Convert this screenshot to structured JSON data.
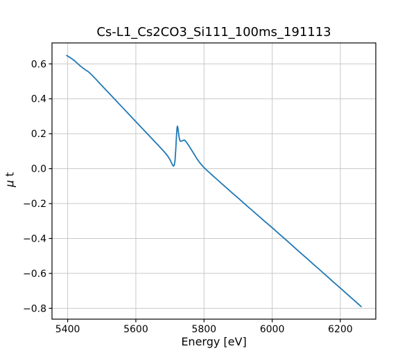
{
  "window": {
    "background": "#ffffff"
  },
  "chart_data": {
    "type": "line",
    "title": "Cs-L1_Cs2CO3_Si111_100ms_191113",
    "xlabel": "Energy [eV]",
    "ylabel": "μ t",
    "ylabel_math": "μ",
    "ylabel_rest": " t",
    "xlim": [
      5354,
      6304
    ],
    "ylim": [
      -0.862,
      0.72
    ],
    "xticks": [
      5400,
      5600,
      5800,
      6000,
      6200
    ],
    "xtick_labels": [
      "5400",
      "5600",
      "5800",
      "6000",
      "6200"
    ],
    "yticks": [
      0.6,
      0.4,
      0.2,
      0.0,
      -0.2,
      -0.4,
      -0.6,
      -0.8
    ],
    "ytick_labels": [
      "0.6",
      "0.4",
      "0.2",
      "0.0",
      "−0.2",
      "−0.4",
      "−0.6",
      "−0.8"
    ],
    "grid": true,
    "legend": "none",
    "line_color": "#1f77b4",
    "grid_color": "#c8c8c8",
    "spine_color": "#000000",
    "series": [
      {
        "name": "mu_t_spectrum",
        "x": [
          5397,
          5404,
          5412,
          5420,
          5428,
          5436,
          5444,
          5452,
          5460,
          5470,
          5480,
          5490,
          5500,
          5515,
          5530,
          5545,
          5560,
          5575,
          5590,
          5605,
          5620,
          5635,
          5650,
          5665,
          5678,
          5688,
          5695,
          5700,
          5704,
          5707,
          5709,
          5711,
          5713,
          5715,
          5717,
          5719,
          5721,
          5722,
          5723,
          5725,
          5727,
          5730,
          5734,
          5738,
          5742,
          5746,
          5750,
          5756,
          5763,
          5771,
          5780,
          5790,
          5800,
          5812,
          5825,
          5840,
          5855,
          5870,
          5885,
          5900,
          5920,
          5940,
          5960,
          5980,
          6000,
          6020,
          6040,
          6060,
          6080,
          6100,
          6120,
          6140,
          6160,
          6180,
          6200,
          6220,
          6240,
          6261
        ],
        "y": [
          0.648,
          0.64,
          0.63,
          0.618,
          0.604,
          0.59,
          0.577,
          0.566,
          0.556,
          0.538,
          0.518,
          0.497,
          0.476,
          0.445,
          0.414,
          0.383,
          0.352,
          0.321,
          0.29,
          0.259,
          0.228,
          0.197,
          0.166,
          0.135,
          0.108,
          0.086,
          0.068,
          0.052,
          0.036,
          0.024,
          0.016,
          0.015,
          0.022,
          0.048,
          0.105,
          0.18,
          0.235,
          0.243,
          0.238,
          0.21,
          0.178,
          0.158,
          0.157,
          0.161,
          0.164,
          0.158,
          0.147,
          0.13,
          0.108,
          0.083,
          0.054,
          0.028,
          0.006,
          -0.016,
          -0.039,
          -0.065,
          -0.091,
          -0.117,
          -0.143,
          -0.168,
          -0.203,
          -0.237,
          -0.271,
          -0.305,
          -0.338,
          -0.373,
          -0.407,
          -0.442,
          -0.477,
          -0.511,
          -0.546,
          -0.58,
          -0.615,
          -0.65,
          -0.684,
          -0.719,
          -0.753,
          -0.79
        ]
      }
    ]
  }
}
